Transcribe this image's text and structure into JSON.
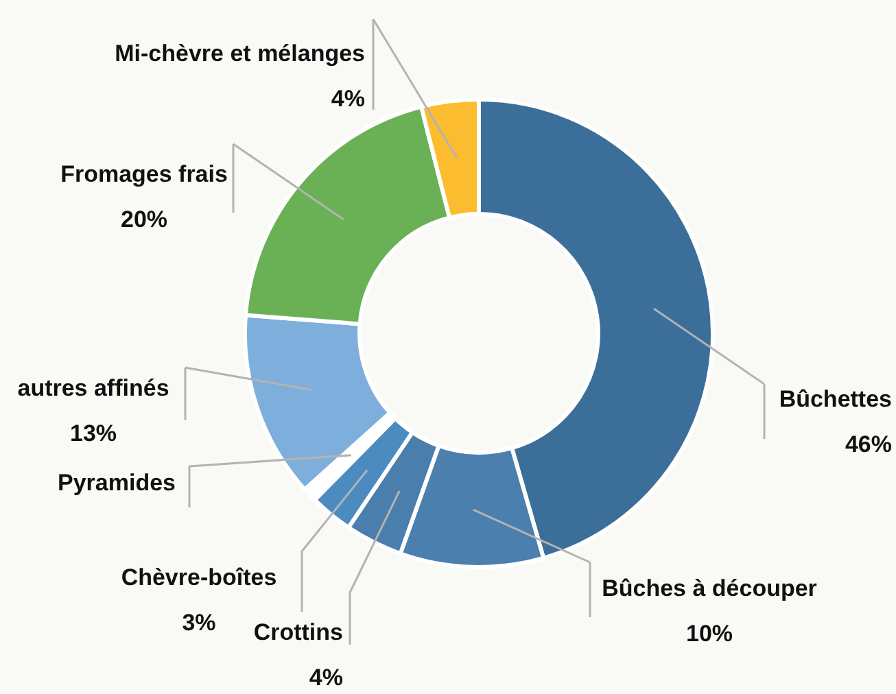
{
  "chart_data": {
    "type": "donut",
    "categories": [
      "Bûchettes",
      "Bûches à découper",
      "Crottins",
      "Chèvre-boîtes",
      "Pyramides",
      "autres affinés",
      "Fromages frais",
      "Mi-chèvre et mélanges"
    ],
    "values": [
      46,
      10,
      4,
      3,
      1,
      13,
      20,
      4
    ],
    "value_labels": [
      "46%",
      "10%",
      "4%",
      "3%",
      null,
      "13%",
      "20%",
      "4%"
    ],
    "colors": [
      "#3b6f9a",
      "#4a7fae",
      "#4a7fad",
      "#4b8bc0",
      "#ffffff",
      "#7eaedc",
      "#6ab155",
      "#fbbd2f"
    ],
    "legend": false
  }
}
